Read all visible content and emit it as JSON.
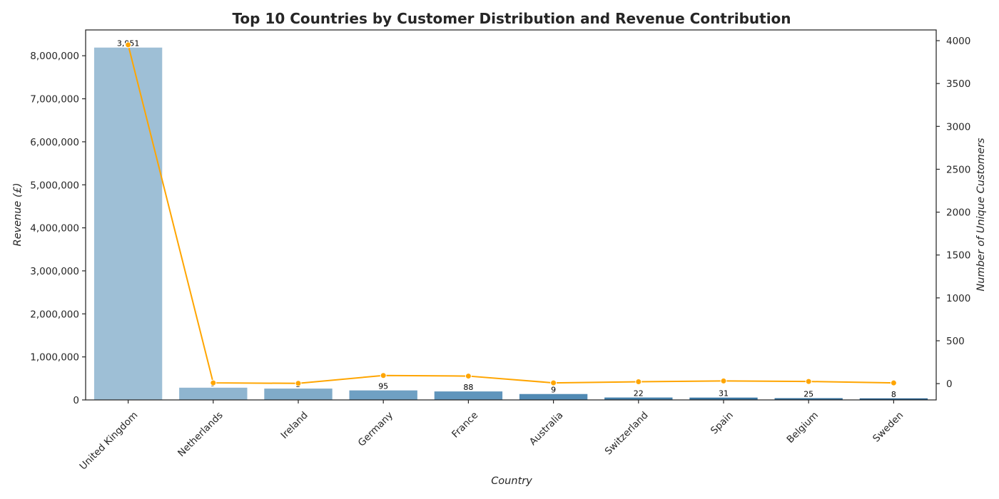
{
  "chart_data": {
    "type": "bar",
    "title": "Top 10 Countries by Customer Distribution and Revenue Contribution",
    "xlabel": "Country",
    "ylabel": "Revenue (£)",
    "y2label": "Number of Unique Customers",
    "categories": [
      "United Kingdom",
      "Netherlands",
      "Ireland",
      "Germany",
      "France",
      "Australia",
      "Switzerland",
      "Spain",
      "Belgium",
      "Sweden"
    ],
    "series": [
      {
        "name": "Revenue (£)",
        "kind": "bar",
        "axis": "left",
        "values": [
          8190000,
          284000,
          263000,
          221000,
          197000,
          137000,
          56000,
          54000,
          40000,
          36000
        ],
        "colors": [
          "#9ebfd6",
          "#8fb5d0",
          "#80abc9",
          "#6fa0c3",
          "#6095bc",
          "#518ab4",
          "#4480ab",
          "#3a76a3",
          "#306c99",
          "#27618f"
        ]
      },
      {
        "name": "Number of Unique Customers",
        "kind": "line",
        "axis": "right",
        "color": "#ffa500",
        "values": [
          3951,
          9,
          3,
          95,
          88,
          9,
          22,
          31,
          25,
          8
        ],
        "labels": [
          "3,951",
          "9",
          "3",
          "95",
          "88",
          "9",
          "22",
          "31",
          "25",
          "8"
        ]
      }
    ],
    "ylim": [
      0,
      8600000
    ],
    "yticks": [
      0,
      1000000,
      2000000,
      3000000,
      4000000,
      5000000,
      6000000,
      7000000,
      8000000
    ],
    "ytick_labels": [
      "0",
      "1,000,000",
      "2,000,000",
      "3,000,000",
      "4,000,000",
      "5,000,000",
      "6,000,000",
      "7,000,000",
      "8,000,000"
    ],
    "y2lim": [
      -190,
      4125
    ],
    "y2ticks": [
      0,
      500,
      1000,
      1500,
      2000,
      2500,
      3000,
      3500,
      4000
    ],
    "y2tick_labels": [
      "0",
      "500",
      "1000",
      "1500",
      "2000",
      "2500",
      "3000",
      "3500",
      "4000"
    ],
    "grid": false
  }
}
